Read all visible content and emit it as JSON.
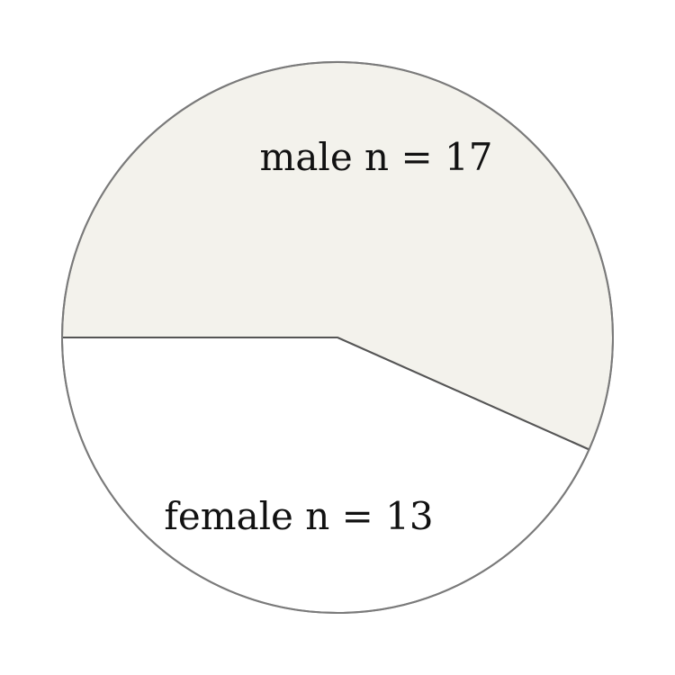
{
  "chart_data": {
    "type": "pie",
    "slices": [
      {
        "category": "male",
        "value": 17,
        "label": "male  n = 17",
        "color": "#f3f2ec"
      },
      {
        "category": "female",
        "value": 13,
        "label": "female  n = 13",
        "color": "#ffffff"
      }
    ],
    "total": 30,
    "start_angle_deg": 180,
    "direction": "clockwise",
    "legend": "none",
    "outline_color": "#7a7a7a"
  }
}
